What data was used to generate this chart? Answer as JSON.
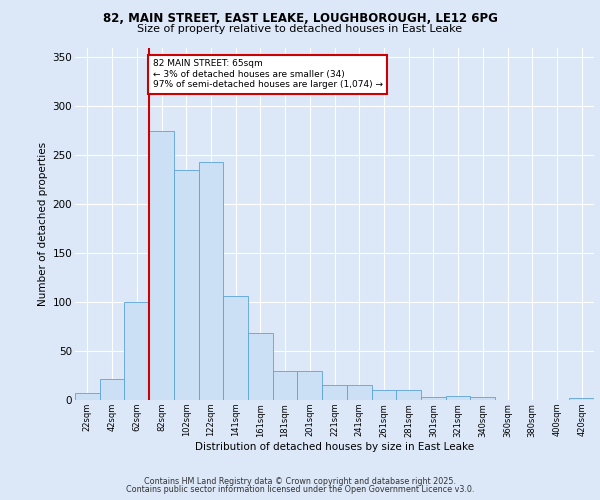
{
  "title_line1": "82, MAIN STREET, EAST LEAKE, LOUGHBOROUGH, LE12 6PG",
  "title_line2": "Size of property relative to detached houses in East Leake",
  "xlabel": "Distribution of detached houses by size in East Leake",
  "ylabel": "Number of detached properties",
  "categories": [
    "22sqm",
    "42sqm",
    "62sqm",
    "82sqm",
    "102sqm",
    "122sqm",
    "141sqm",
    "161sqm",
    "181sqm",
    "201sqm",
    "221sqm",
    "241sqm",
    "261sqm",
    "281sqm",
    "301sqm",
    "321sqm",
    "340sqm",
    "360sqm",
    "380sqm",
    "400sqm",
    "420sqm"
  ],
  "values": [
    7,
    21,
    100,
    275,
    235,
    243,
    106,
    68,
    30,
    30,
    15,
    15,
    10,
    10,
    3,
    4,
    3,
    0,
    0,
    0,
    2
  ],
  "bar_color": "#cce0f5",
  "bar_edge_color": "#5ba3d9",
  "vline_x_index": 2,
  "vline_color": "#cc0000",
  "annotation_text": "82 MAIN STREET: 65sqm\n← 3% of detached houses are smaller (34)\n97% of semi-detached houses are larger (1,074) →",
  "annotation_box_color": "#ffffff",
  "annotation_box_edge_color": "#cc0000",
  "bg_color": "#dce8f8",
  "plot_bg_color": "#dce8f8",
  "grid_color": "#ffffff",
  "footer_line1": "Contains HM Land Registry data © Crown copyright and database right 2025.",
  "footer_line2": "Contains public sector information licensed under the Open Government Licence v3.0.",
  "ylim": [
    0,
    360
  ],
  "yticks": [
    0,
    50,
    100,
    150,
    200,
    250,
    300,
    350
  ]
}
